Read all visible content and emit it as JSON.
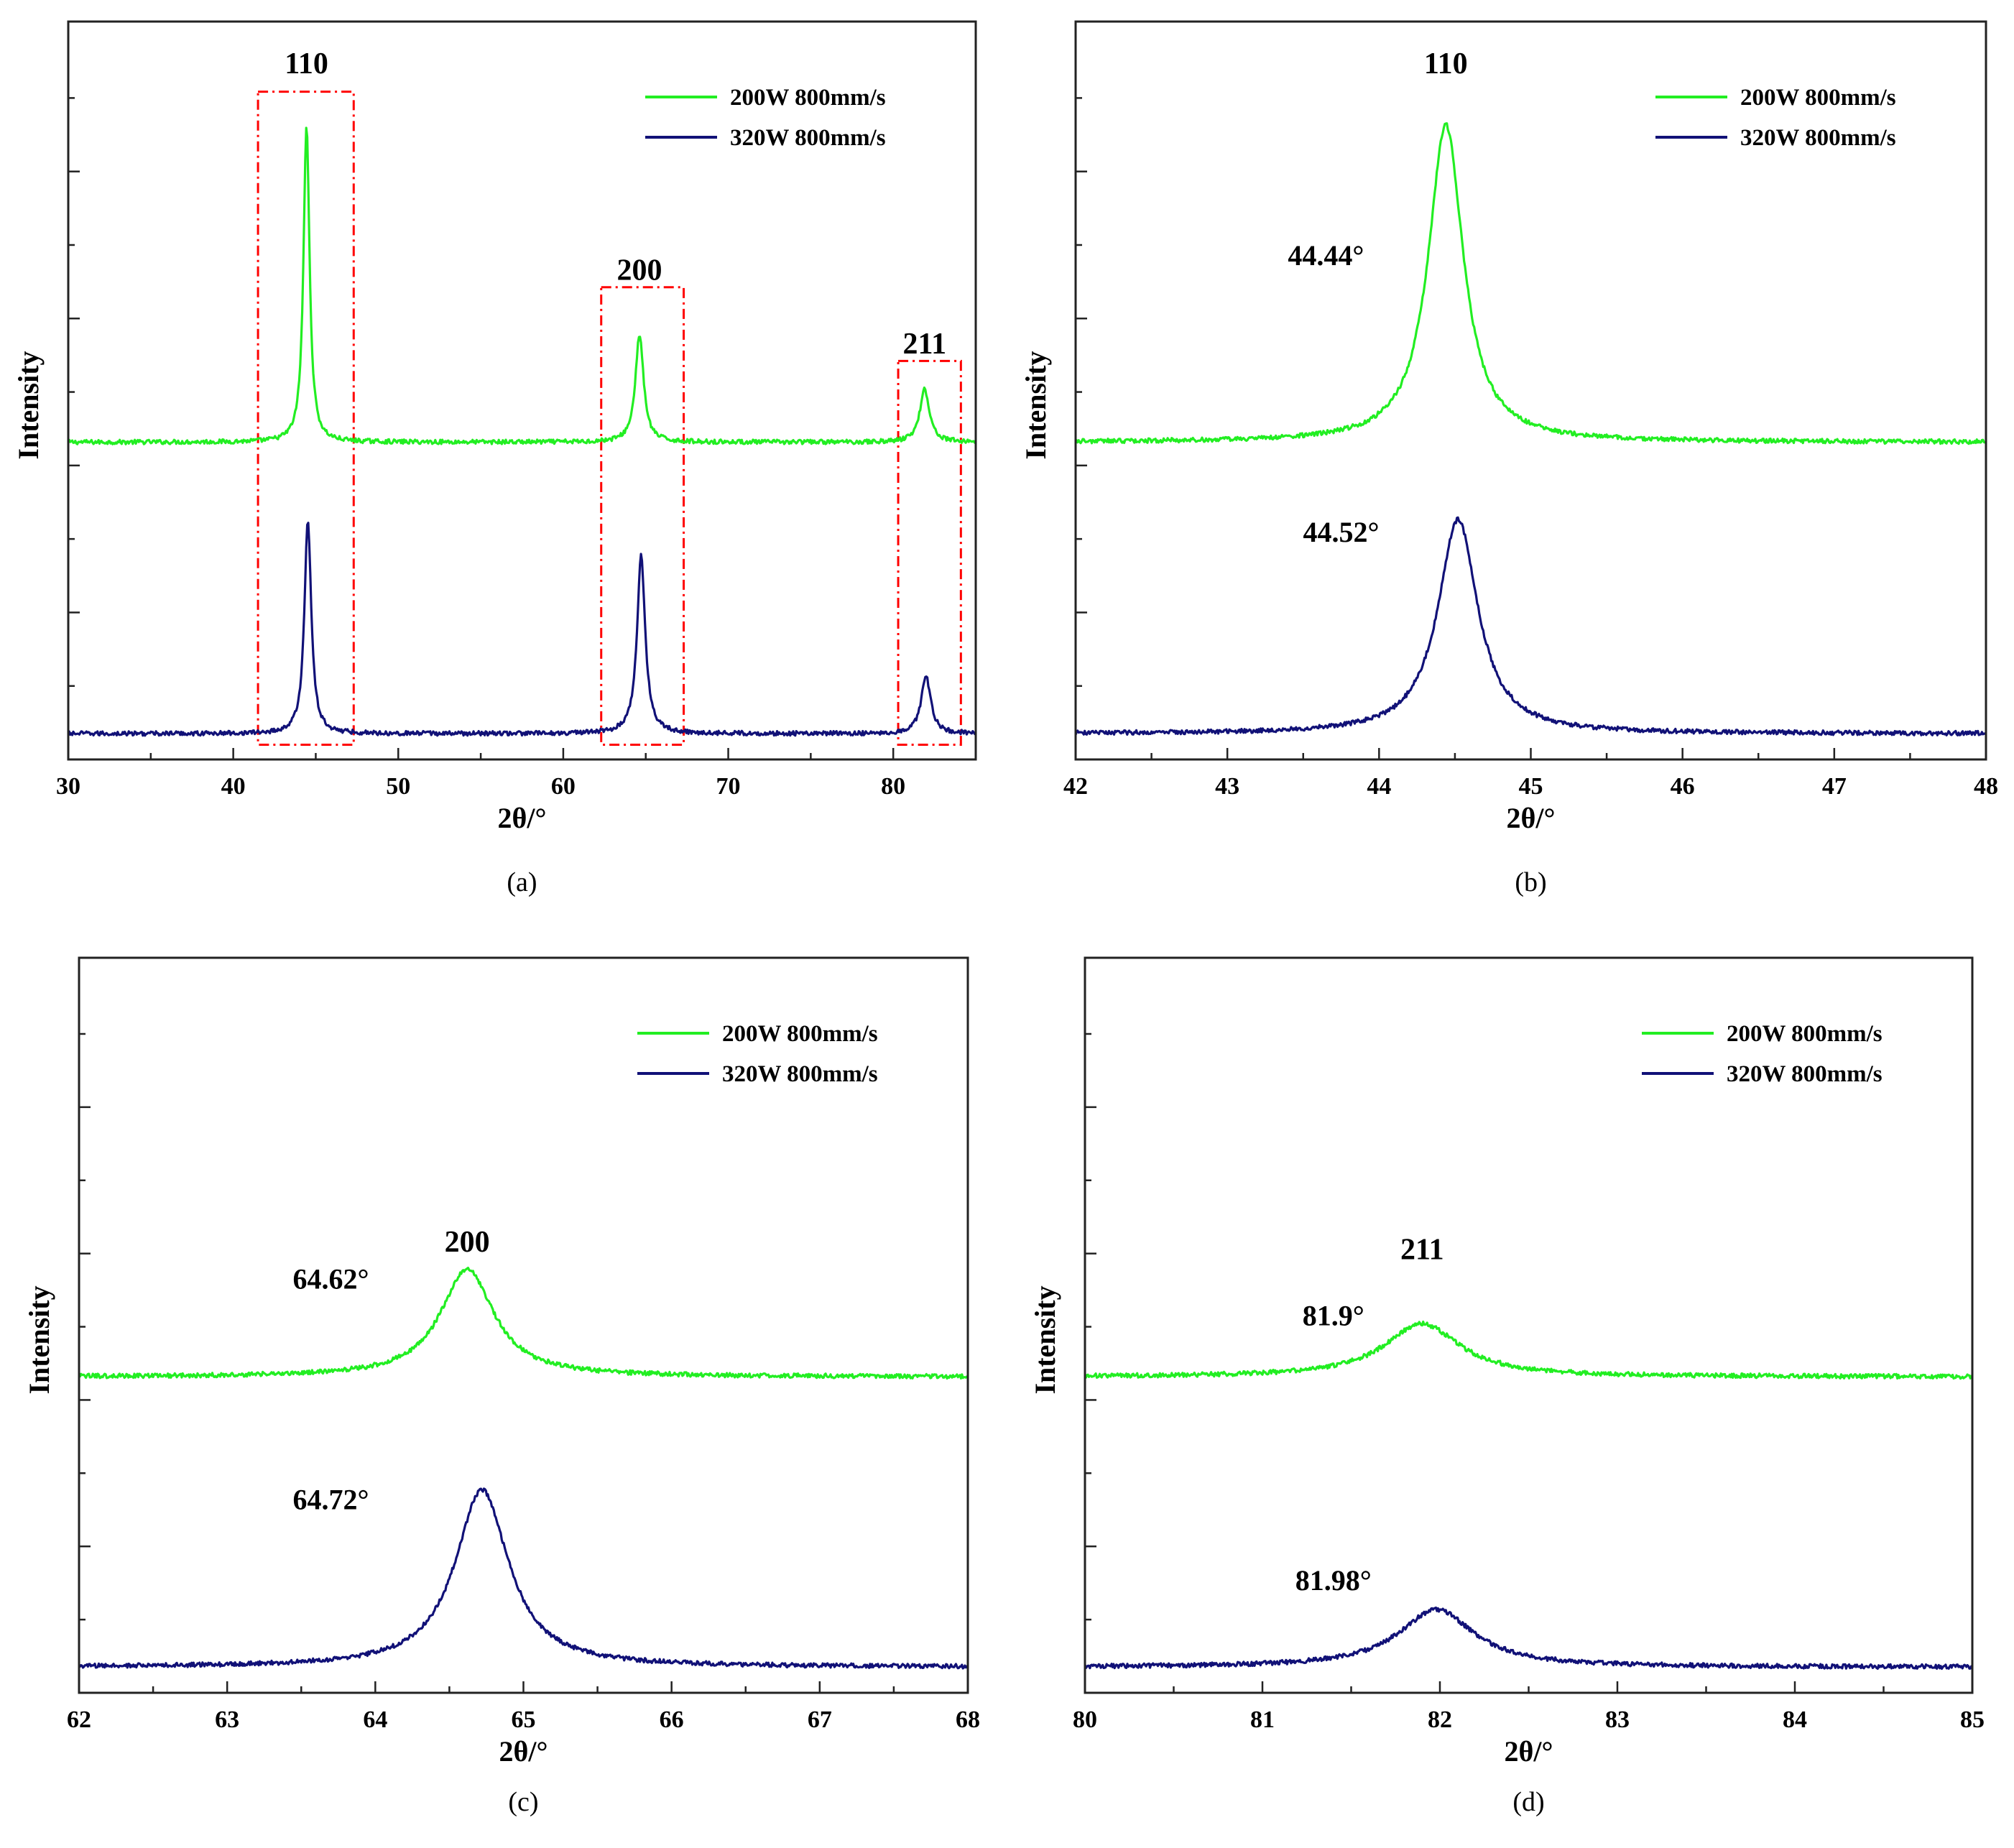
{
  "chart_data": [
    {
      "type": "line",
      "panel": "(a)",
      "caption": "(a)",
      "xlabel": "2θ/°",
      "ylabel": "Intensity",
      "xlim": [
        30,
        85
      ],
      "xticks": [
        30,
        40,
        50,
        60,
        70,
        80
      ],
      "ylim": [
        0,
        1
      ],
      "legend_position": "top-right",
      "series": [
        {
          "name": "200W 800mm/s",
          "color": "#22ee22",
          "baseline": 0.43,
          "peaks": [
            {
              "x": 44.44,
              "height": 0.43,
              "width": 0.22
            },
            {
              "x": 64.62,
              "height": 0.146,
              "width": 0.3
            },
            {
              "x": 81.9,
              "height": 0.072,
              "width": 0.35
            }
          ]
        },
        {
          "name": "320W 800mm/s",
          "color": "#111177",
          "baseline": 0.035,
          "peaks": [
            {
              "x": 44.52,
              "height": 0.29,
              "width": 0.25
            },
            {
              "x": 64.72,
              "height": 0.241,
              "width": 0.3
            },
            {
              "x": 81.98,
              "height": 0.078,
              "width": 0.35
            }
          ]
        }
      ],
      "peak_labels": [
        {
          "text": "110",
          "x": 44.44,
          "y": 0.93
        },
        {
          "text": "200",
          "x": 64.62,
          "y": 0.65
        },
        {
          "text": "211",
          "x": 81.9,
          "y": 0.55
        }
      ],
      "highlight_boxes": [
        {
          "x0": 41.5,
          "x1": 47.3,
          "y0": 0.02,
          "y1": 0.905
        },
        {
          "x0": 62.3,
          "x1": 67.3,
          "y0": 0.02,
          "y1": 0.64
        },
        {
          "x0": 80.3,
          "x1": 84.1,
          "y0": 0.02,
          "y1": 0.54
        }
      ],
      "annotations": []
    },
    {
      "type": "line",
      "panel": "(b)",
      "caption": "(b)",
      "xlabel": "2θ/°",
      "ylabel": "Intensity",
      "xlim": [
        42,
        48
      ],
      "xticks": [
        42,
        43,
        44,
        45,
        46,
        47,
        48
      ],
      "ylim": [
        0,
        1
      ],
      "legend_position": "top-right",
      "series": [
        {
          "name": "200W 800mm/s",
          "color": "#22ee22",
          "baseline": 0.43,
          "peaks": [
            {
              "x": 44.44,
              "height": 0.43,
              "width": 0.14
            }
          ]
        },
        {
          "name": "320W 800mm/s",
          "color": "#111177",
          "baseline": 0.035,
          "peaks": [
            {
              "x": 44.52,
              "height": 0.29,
              "width": 0.16
            }
          ]
        }
      ],
      "peak_labels": [
        {
          "text": "110",
          "x": 44.44,
          "y": 0.93
        }
      ],
      "highlight_boxes": [],
      "annotations": [
        {
          "text": "44.44°",
          "x": 43.65,
          "y": 0.67
        },
        {
          "text": "44.52°",
          "x": 43.75,
          "y": 0.295
        }
      ]
    },
    {
      "type": "line",
      "panel": "(c)",
      "caption": "(c)",
      "xlabel": "2θ/°",
      "ylabel": "Intensity",
      "xlim": [
        62,
        68
      ],
      "xticks": [
        62,
        63,
        64,
        65,
        66,
        67,
        68
      ],
      "ylim": [
        0,
        1
      ],
      "legend_position": "top-right",
      "series": [
        {
          "name": "200W 800mm/s",
          "color": "#22ee22",
          "baseline": 0.43,
          "peaks": [
            {
              "x": 64.62,
              "height": 0.146,
              "width": 0.22
            }
          ]
        },
        {
          "name": "320W 800mm/s",
          "color": "#111177",
          "baseline": 0.035,
          "peaks": [
            {
              "x": 64.72,
              "height": 0.241,
              "width": 0.22
            }
          ]
        }
      ],
      "peak_labels": [
        {
          "text": "200",
          "x": 64.62,
          "y": 0.6
        }
      ],
      "highlight_boxes": [],
      "annotations": [
        {
          "text": "64.62°",
          "x": 63.7,
          "y": 0.55
        },
        {
          "text": "64.72°",
          "x": 63.7,
          "y": 0.25
        }
      ]
    },
    {
      "type": "line",
      "panel": "(d)",
      "caption": "(d)",
      "xlabel": "2θ/°",
      "ylabel": "Intensity",
      "xlim": [
        80,
        85
      ],
      "xticks": [
        80,
        81,
        82,
        83,
        84,
        85
      ],
      "ylim": [
        0,
        1
      ],
      "legend_position": "top-right",
      "series": [
        {
          "name": "200W 800mm/s",
          "color": "#22ee22",
          "baseline": 0.43,
          "peaks": [
            {
              "x": 81.9,
              "height": 0.072,
              "width": 0.26
            }
          ]
        },
        {
          "name": "320W 800mm/s",
          "color": "#111177",
          "baseline": 0.035,
          "peaks": [
            {
              "x": 81.98,
              "height": 0.078,
              "width": 0.26
            }
          ]
        }
      ],
      "peak_labels": [
        {
          "text": "211",
          "x": 81.9,
          "y": 0.59
        }
      ],
      "highlight_boxes": [],
      "annotations": [
        {
          "text": "81.9°",
          "x": 81.4,
          "y": 0.5
        },
        {
          "text": "81.98°",
          "x": 81.4,
          "y": 0.14
        }
      ]
    }
  ]
}
